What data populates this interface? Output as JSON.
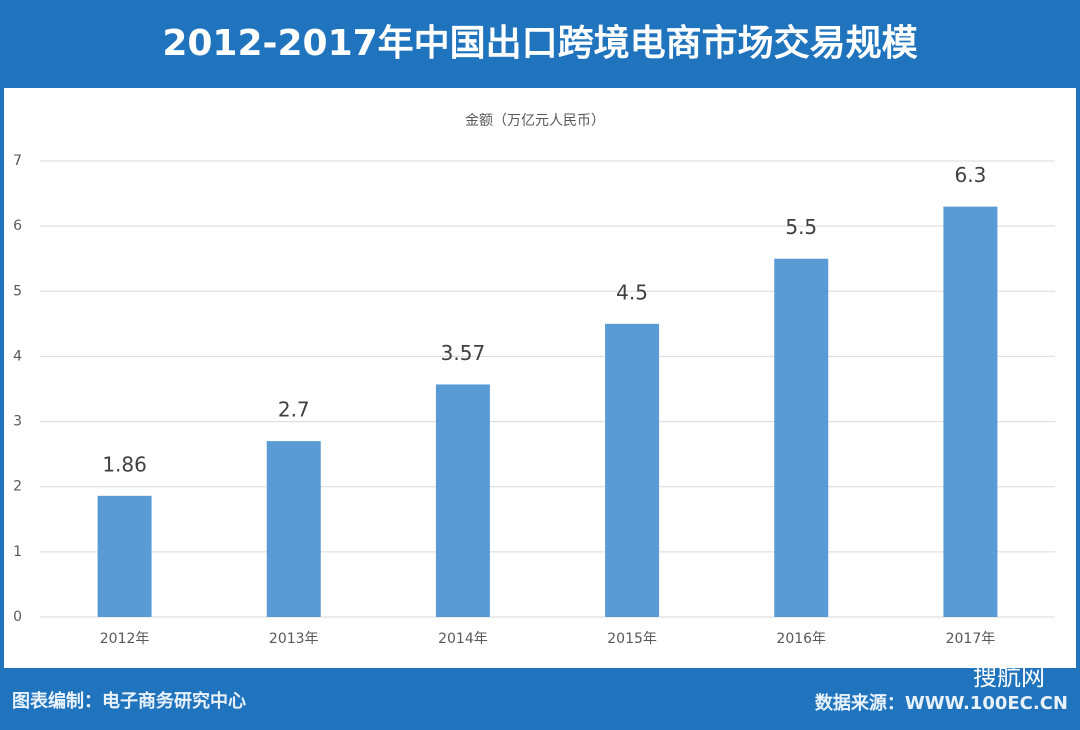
{
  "chart_data": {
    "type": "bar",
    "title": "2012-2017年中国出口跨境电商市场交易规模",
    "y_label": "金额（万亿元人民币）",
    "categories": [
      "2012年",
      "2013年",
      "2014年",
      "2015年",
      "2016年",
      "2017年"
    ],
    "values": [
      1.86,
      2.7,
      3.57,
      4.5,
      5.5,
      6.3
    ],
    "color": "#5b9bd5",
    "ylim": [
      0,
      7
    ],
    "yticks": [
      0,
      1,
      2,
      3,
      4,
      5,
      6,
      7
    ],
    "grid": true,
    "footer_left": "图表编制：电子商务研究中心",
    "footer_right": "数据来源：WWW.100EC.CN",
    "watermark": "搜航网"
  }
}
